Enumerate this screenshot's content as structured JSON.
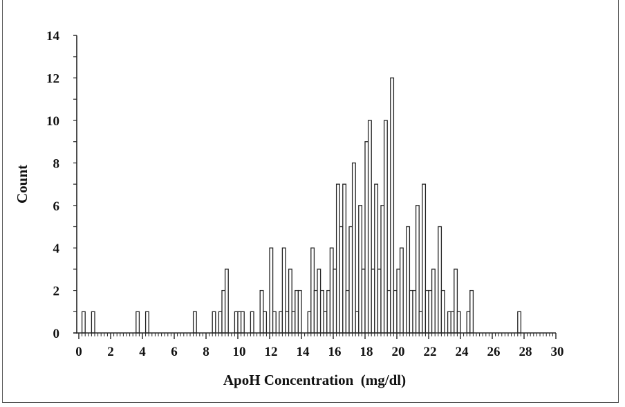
{
  "chart_data": {
    "type": "bar",
    "title": "",
    "xlabel": "ApoH Concentration  (mg/dl)",
    "ylabel": "Count",
    "xlim": [
      0,
      30
    ],
    "ylim": [
      0,
      14
    ],
    "bin_width": 0.2,
    "x_ticks": [
      0,
      2,
      4,
      6,
      8,
      10,
      12,
      14,
      16,
      18,
      20,
      22,
      24,
      26,
      28,
      30
    ],
    "y_ticks": [
      0,
      2,
      4,
      6,
      8,
      10,
      12,
      14
    ],
    "grid": false,
    "legend": null,
    "bins": [
      {
        "x": 0.2,
        "count": 1
      },
      {
        "x": 0.8,
        "count": 1
      },
      {
        "x": 3.6,
        "count": 1
      },
      {
        "x": 4.2,
        "count": 1
      },
      {
        "x": 7.2,
        "count": 1
      },
      {
        "x": 8.4,
        "count": 1
      },
      {
        "x": 8.8,
        "count": 1
      },
      {
        "x": 9.0,
        "count": 2
      },
      {
        "x": 9.2,
        "count": 3
      },
      {
        "x": 9.8,
        "count": 1
      },
      {
        "x": 10.0,
        "count": 1
      },
      {
        "x": 10.2,
        "count": 1
      },
      {
        "x": 10.8,
        "count": 1
      },
      {
        "x": 11.4,
        "count": 2
      },
      {
        "x": 11.6,
        "count": 1
      },
      {
        "x": 12.0,
        "count": 4
      },
      {
        "x": 12.2,
        "count": 1
      },
      {
        "x": 12.6,
        "count": 1
      },
      {
        "x": 12.8,
        "count": 4
      },
      {
        "x": 13.0,
        "count": 1
      },
      {
        "x": 13.2,
        "count": 3
      },
      {
        "x": 13.4,
        "count": 1
      },
      {
        "x": 13.6,
        "count": 2
      },
      {
        "x": 13.8,
        "count": 2
      },
      {
        "x": 14.4,
        "count": 1
      },
      {
        "x": 14.6,
        "count": 4
      },
      {
        "x": 14.8,
        "count": 2
      },
      {
        "x": 15.0,
        "count": 3
      },
      {
        "x": 15.2,
        "count": 2
      },
      {
        "x": 15.4,
        "count": 1
      },
      {
        "x": 15.6,
        "count": 2
      },
      {
        "x": 15.8,
        "count": 4
      },
      {
        "x": 16.0,
        "count": 3
      },
      {
        "x": 16.2,
        "count": 7
      },
      {
        "x": 16.4,
        "count": 5
      },
      {
        "x": 16.6,
        "count": 7
      },
      {
        "x": 16.8,
        "count": 2
      },
      {
        "x": 17.0,
        "count": 5
      },
      {
        "x": 17.2,
        "count": 8
      },
      {
        "x": 17.4,
        "count": 1
      },
      {
        "x": 17.6,
        "count": 6
      },
      {
        "x": 17.8,
        "count": 3
      },
      {
        "x": 18.0,
        "count": 9
      },
      {
        "x": 18.2,
        "count": 10
      },
      {
        "x": 18.4,
        "count": 3
      },
      {
        "x": 18.6,
        "count": 7
      },
      {
        "x": 18.8,
        "count": 3
      },
      {
        "x": 19.0,
        "count": 6
      },
      {
        "x": 19.2,
        "count": 10
      },
      {
        "x": 19.4,
        "count": 2
      },
      {
        "x": 19.6,
        "count": 12
      },
      {
        "x": 19.8,
        "count": 2
      },
      {
        "x": 20.0,
        "count": 3
      },
      {
        "x": 20.2,
        "count": 4
      },
      {
        "x": 20.6,
        "count": 5
      },
      {
        "x": 20.8,
        "count": 2
      },
      {
        "x": 21.0,
        "count": 2
      },
      {
        "x": 21.2,
        "count": 6
      },
      {
        "x": 21.4,
        "count": 1
      },
      {
        "x": 21.6,
        "count": 7
      },
      {
        "x": 21.8,
        "count": 2
      },
      {
        "x": 22.0,
        "count": 2
      },
      {
        "x": 22.2,
        "count": 3
      },
      {
        "x": 22.6,
        "count": 5
      },
      {
        "x": 22.8,
        "count": 2
      },
      {
        "x": 23.2,
        "count": 1
      },
      {
        "x": 23.4,
        "count": 1
      },
      {
        "x": 23.6,
        "count": 3
      },
      {
        "x": 23.8,
        "count": 1
      },
      {
        "x": 24.4,
        "count": 1
      },
      {
        "x": 24.6,
        "count": 2
      },
      {
        "x": 27.6,
        "count": 1
      }
    ]
  },
  "colors": {
    "bar_fill": "#ffffff",
    "bar_stroke": "#222222",
    "axis": "#222222",
    "text": "#111111"
  }
}
